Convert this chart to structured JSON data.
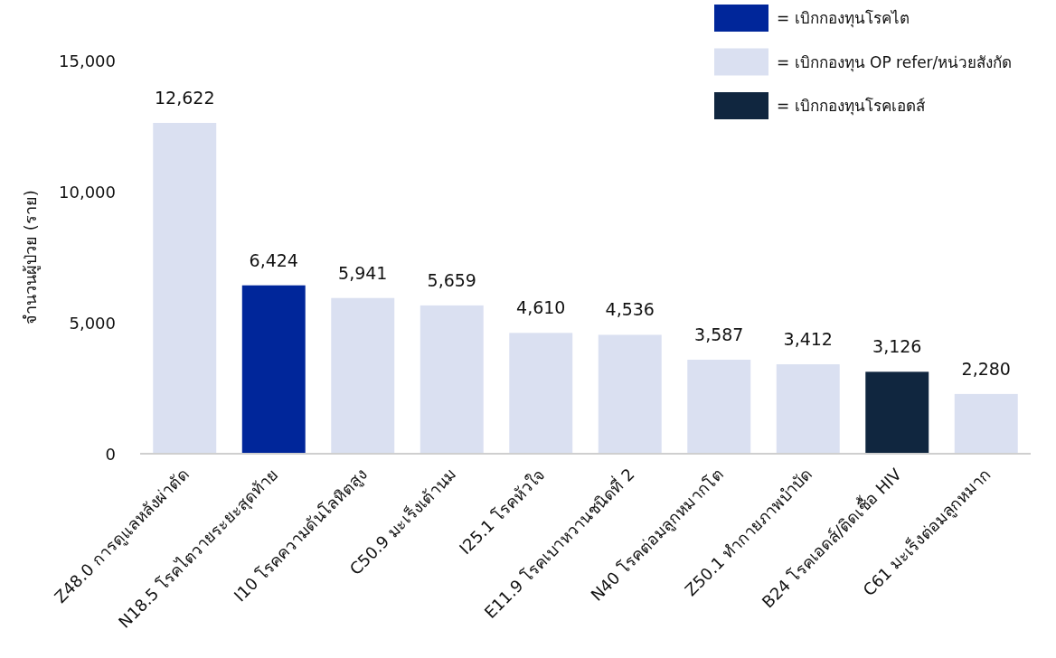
{
  "chart_data": {
    "type": "bar",
    "ylabel": "จำนวนผู้ป่วย (ราย)",
    "categories": [
      "Z48.0 การดูแลหลังผ่าตัด",
      "N18.5 โรคไตวายระยะสุดท้าย",
      "I10 โรคความดันโลหิตสูง",
      "C50.9 มะเร็งเต้านม",
      "I25.1 โรคหัวใจ",
      "E11.9 โรคเบาหวานชนิดที่ 2",
      "N40 โรคต่อมลูกหมากโต",
      "Z50.1 ทำกายภาพบำบัด",
      "B24 โรคเอดส์/ติดเชื้อ HIV",
      "C61 มะเร็งต่อมลูกหมาก"
    ],
    "series": [
      {
        "name": "= เบิกกองทุนโรคไต",
        "color": "#00269a",
        "values": [
          null,
          6424,
          null,
          null,
          null,
          null,
          null,
          null,
          null,
          null
        ],
        "value_labels": [
          null,
          "6,424",
          null,
          null,
          null,
          null,
          null,
          null,
          null,
          null
        ]
      },
      {
        "name": "= เบิกกองทุน OP refer/หน่วยสังกัด",
        "color": "#dae0f1",
        "values": [
          12622,
          null,
          5941,
          5659,
          4610,
          4536,
          3587,
          3412,
          null,
          2280
        ],
        "value_labels": [
          "12,622",
          null,
          "5,941",
          "5,659",
          "4,610",
          "4,536",
          "3,587",
          "3,412",
          null,
          "2,280"
        ]
      },
      {
        "name": "= เบิกกองทุนโรคเอดส์",
        "color": "#10263f",
        "values": [
          null,
          null,
          null,
          null,
          null,
          null,
          null,
          null,
          3126,
          null
        ],
        "value_labels": [
          null,
          null,
          null,
          null,
          null,
          null,
          null,
          null,
          "3,126",
          null
        ]
      }
    ],
    "stacked": true,
    "ylim": [
      0,
      15000
    ],
    "yticks": [
      0,
      {
        "value": 5000,
        "label": "5,000"
      },
      {
        "value": 10000,
        "label": "10,000"
      },
      {
        "value": 15000,
        "label": "15,000"
      }
    ],
    "grid": false,
    "legend": "top right"
  }
}
